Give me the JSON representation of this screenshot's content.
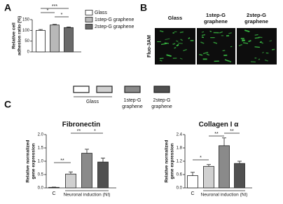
{
  "panel_labels": [
    "A",
    "B",
    "C"
  ],
  "chart_data": [
    {
      "type": "bar",
      "ylabel": [
        "Relative cell",
        "adhesion ratio (%)"
      ],
      "categories": [
        "Glass",
        "1step-G graphene",
        "2step-G graphene"
      ],
      "values": [
        100,
        125,
        113
      ],
      "errors": [
        4,
        3,
        3
      ],
      "colors": [
        "#ffffff",
        "#b8b8b8",
        "#6a6a6a"
      ],
      "ylim": [
        0,
        150
      ],
      "yticks": [
        0,
        50,
        100,
        150
      ],
      "annotations": [
        "***",
        "*",
        "*"
      ],
      "legend": "right"
    },
    {
      "type": "bar",
      "title": "Fibronectin",
      "ylabel": [
        "Relative normalized",
        "gene expression"
      ],
      "categories": [
        "C",
        null,
        null,
        null
      ],
      "xlabel": "Neuronal induction (NI)",
      "values": [
        0.02,
        0.52,
        1.3,
        0.97
      ],
      "errors": [
        0.01,
        0.08,
        0.15,
        0.15
      ],
      "colors": [
        "#ffffff",
        "#d0d0d0",
        "#8a8a8a",
        "#505050"
      ],
      "ylim": [
        0,
        2
      ],
      "yticks": [
        {
          "value": 0,
          "label": "0.0"
        },
        {
          "value": 0.5,
          "label": "0.5"
        },
        {
          "value": 1,
          "label": "1.0"
        },
        {
          "value": 1.5,
          "label": "1.5"
        },
        {
          "value": 2,
          "label": "2.0"
        }
      ],
      "annotations": [
        "**",
        "**",
        "*"
      ]
    },
    {
      "type": "bar",
      "title": "Collagen I α",
      "ylabel": [
        "Relative normalized",
        "gene expression"
      ],
      "categories": [
        "C",
        null,
        null,
        null
      ],
      "xlabel": "Neuronal induction (NI)",
      "values": [
        0.55,
        0.97,
        1.9,
        1.1
      ],
      "errors": [
        0.15,
        0.08,
        0.35,
        0.1
      ],
      "colors": [
        "#ffffff",
        "#d0d0d0",
        "#8a8a8a",
        "#505050"
      ],
      "ylim": [
        0,
        2.4
      ],
      "yticks": [
        {
          "value": 0,
          "label": "0.0"
        },
        {
          "value": 0.6,
          "label": "0.6"
        },
        {
          "value": 1.2,
          "label": "1.2"
        },
        {
          "value": 1.8,
          "label": "1.8"
        },
        {
          "value": 2.4,
          "label": "2.4"
        }
      ],
      "annotations": [
        "*",
        "**",
        "**"
      ]
    }
  ],
  "panel_b": {
    "columns": [
      [
        "Glass"
      ],
      [
        "1step-G",
        "graphene"
      ],
      [
        "2step-G",
        "graphene"
      ]
    ],
    "row_label": "Fluo-3AM"
  },
  "panel_c_legend": {
    "items": [
      [
        "Glass"
      ],
      [
        "1step-G",
        "graphene"
      ],
      [
        "2step-G",
        "graphene"
      ]
    ]
  }
}
